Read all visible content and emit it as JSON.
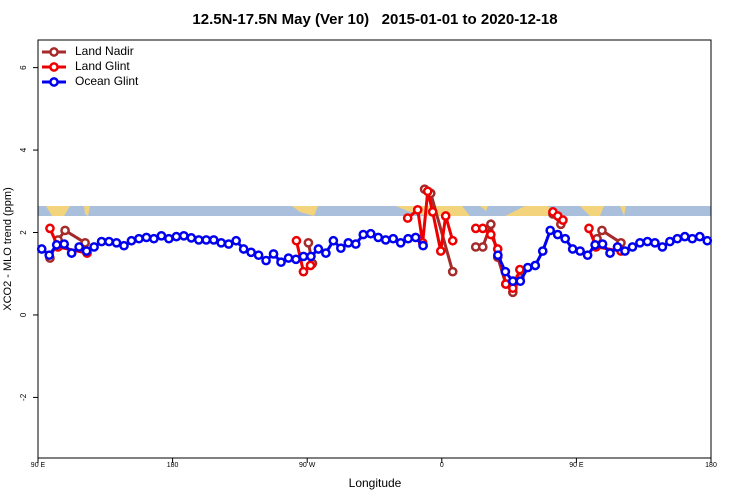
{
  "chart_data": {
    "type": "line",
    "title": "12.5N-17.5N May (Ver 10)   2015-01-01 to 2020-12-18",
    "x_label": "Longitude",
    "y_label": "XCO2 - MLO trend (ppm)",
    "xlim": [
      90,
      540
    ],
    "ylim": [
      -3.47,
      6.67
    ],
    "xticks": [
      {
        "value": 90,
        "label": "90 E"
      },
      180,
      {
        "value": 270,
        "label": "90 W"
      },
      {
        "value": 360,
        "label": "0"
      },
      {
        "value": 450,
        "label": "90 E"
      },
      {
        "value": 540,
        "label": "180"
      }
    ],
    "yticks": [
      -2,
      0,
      2,
      4,
      6
    ],
    "legend": "top-left",
    "series": [
      {
        "name": "Land Nadir",
        "color": "#a52a2a",
        "x": [
          98.0,
          103.4,
          108.1,
          121.5,
          null,
          270.8,
          273.5,
          null,
          348.5,
          352.6,
          367.3,
          null,
          382.7,
          387.4,
          392.8,
          397.4,
          402.8,
          407.5,
          412.2,
          null,
          434.3,
          439.6,
          null,
          463.8,
          467.1,
          479.8
        ],
        "values": [
          1.38,
          1.82,
          2.05,
          1.75,
          null,
          1.75,
          1.25,
          null,
          3.05,
          2.95,
          1.05,
          null,
          1.65,
          1.65,
          2.2,
          1.4,
          0.75,
          0.55,
          0.9,
          null,
          2.45,
          2.2,
          null,
          1.85,
          2.05,
          1.75
        ]
      },
      {
        "name": "Land Glint",
        "color": "#ee0000",
        "x": [
          98.0,
          103.4,
          122.8,
          null,
          262.8,
          267.5,
          272.2,
          null,
          337.2,
          343.9,
          347.2,
          350.6,
          353.9,
          359.3,
          362.6,
          367.3,
          null,
          382.7,
          387.4,
          392.8,
          397.4,
          402.8,
          407.5,
          412.2,
          null,
          434.3,
          437.6,
          441.0,
          null,
          458.4,
          463.1,
          479.8
        ],
        "values": [
          2.1,
          1.65,
          1.5,
          null,
          1.8,
          1.05,
          1.2,
          null,
          2.35,
          2.55,
          1.75,
          3.0,
          2.5,
          1.55,
          2.4,
          1.8,
          null,
          2.1,
          2.1,
          1.95,
          1.6,
          0.75,
          0.65,
          1.1,
          null,
          2.5,
          2.4,
          2.3,
          null,
          2.1,
          1.65,
          1.55
        ]
      },
      {
        "name": "Ocean Glint",
        "color": "#0000ee",
        "x": [
          92.5,
          97.5,
          102.5,
          107.5,
          112.5,
          117.5,
          122.5,
          127.5,
          132.5,
          137.5,
          142.5,
          147.5,
          152.5,
          157.5,
          162.5,
          167.5,
          172.5,
          177.5,
          182.5,
          187.5,
          192.5,
          197.5,
          202.5,
          207.5,
          212.5,
          217.5,
          222.5,
          227.5,
          232.5,
          237.5,
          242.5,
          247.5,
          252.5,
          257.5,
          262.5,
          267.5,
          272.5,
          277.5,
          282.5,
          287.5,
          292.5,
          297.5,
          302.5,
          307.5,
          312.5,
          317.5,
          322.5,
          327.5,
          332.5,
          337.5,
          342.5,
          347.5,
          null,
          397.5,
          402.5,
          407.5,
          412.5,
          417.5,
          422.5,
          427.5,
          432.5,
          437.5,
          442.5,
          447.5,
          452.5,
          457.5,
          462.5,
          467.5,
          472.5,
          477.5,
          482.5,
          487.5,
          492.5,
          497.5,
          502.5,
          507.5,
          512.5,
          517.5,
          522.5,
          527.5,
          532.5,
          537.5
        ],
        "values": [
          1.6,
          1.45,
          1.7,
          1.72,
          1.5,
          1.65,
          1.55,
          1.65,
          1.78,
          1.78,
          1.75,
          1.68,
          1.8,
          1.85,
          1.88,
          1.85,
          1.92,
          1.85,
          1.9,
          1.92,
          1.87,
          1.82,
          1.82,
          1.82,
          1.75,
          1.72,
          1.8,
          1.6,
          1.52,
          1.45,
          1.32,
          1.48,
          1.28,
          1.38,
          1.35,
          1.42,
          1.42,
          1.6,
          1.5,
          1.8,
          1.62,
          1.75,
          1.72,
          1.95,
          1.97,
          1.88,
          1.82,
          1.85,
          1.75,
          1.85,
          1.88,
          1.68,
          null,
          1.45,
          1.05,
          0.82,
          0.82,
          1.15,
          1.2,
          1.55,
          2.05,
          1.95,
          1.85,
          1.6,
          1.55,
          1.45,
          1.7,
          1.72,
          1.5,
          1.65,
          1.55,
          1.65,
          1.75,
          1.78,
          1.75,
          1.65,
          1.78,
          1.85,
          1.9,
          1.85,
          1.9,
          1.8
        ]
      }
    ]
  }
}
